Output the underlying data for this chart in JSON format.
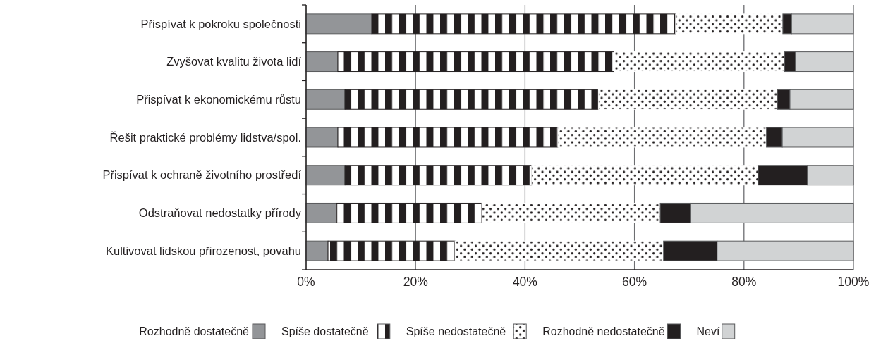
{
  "chart_data": {
    "type": "bar",
    "orientation": "horizontal",
    "stacked": true,
    "categories": [
      "Přispívat k pokroku společnosti",
      "Zvyšovat kvalitu života lidí",
      "Přispívat k ekonomickému růstu",
      "Řešit praktické problémy lidstva/spol.",
      "Přispívat k ochraně životního prostředí",
      "Odstraňovat nedostatky přírody",
      "Kultivovat lidskou přirozenost, povahu"
    ],
    "series": [
      {
        "name": "Rozhodně dostatečně",
        "color": "#939598",
        "values": [
          12,
          5.8,
          7.1,
          5.8,
          7.1,
          5.5,
          4.0
        ]
      },
      {
        "name": "Spíše dostatečně",
        "color": "#231f20",
        "values": [
          55.5,
          50.5,
          46.3,
          40.2,
          34.1,
          26.6,
          23.2
        ]
      },
      {
        "name": "Spíše nedostatečně",
        "color": "#ffffff",
        "values": [
          19.6,
          31.1,
          32.7,
          38.1,
          41.4,
          32.6,
          38.1
        ]
      },
      {
        "name": "Rozhodně nedostatečně",
        "color": "#231f20",
        "values": [
          1.6,
          2.0,
          2.3,
          2.9,
          9.0,
          5.5,
          9.8
        ]
      },
      {
        "name": "Neví",
        "color": "#d1d3d4",
        "values": [
          11.3,
          10.6,
          11.6,
          13.0,
          8.4,
          29.8,
          24.9
        ]
      }
    ],
    "xlim": [
      0,
      100
    ],
    "xticks": [
      {
        "value": 0,
        "label": "0%"
      },
      {
        "value": 20,
        "label": "20%"
      },
      {
        "value": 40,
        "label": "40%"
      },
      {
        "value": 60,
        "label": "60%"
      },
      {
        "value": 80,
        "label": "80%"
      },
      {
        "value": 100,
        "label": "100%"
      }
    ],
    "grid": "x",
    "legend": "bottom"
  }
}
